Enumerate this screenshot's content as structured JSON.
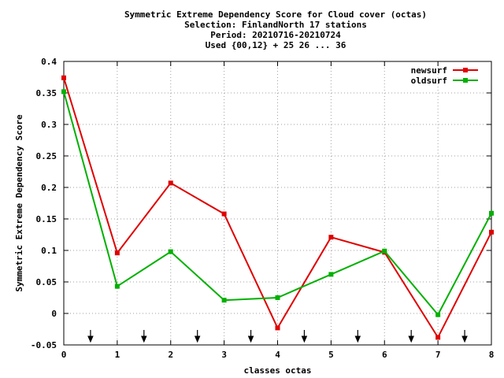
{
  "chart_data": {
    "type": "line",
    "title_lines": [
      "Symmetric Extreme Dependency Score  for Cloud cover (octas)",
      "Selection: FinlandNorth     17 stations",
      "Period: 20210716-20210724",
      "Used {00,12} + 25 26 ... 36"
    ],
    "xlabel": "classes octas",
    "ylabel": "Symmetric Extreme Dependency Score",
    "xlim": [
      0,
      8
    ],
    "ylim": [
      -0.05,
      0.4
    ],
    "x_ticks": [
      0,
      1,
      2,
      3,
      4,
      5,
      6,
      7,
      8
    ],
    "x_tick_labels": [
      "0",
      "1",
      "2",
      "3",
      "4",
      "5",
      "6",
      "7",
      "8"
    ],
    "y_ticks": [
      -0.05,
      0,
      0.05,
      0.1,
      0.15,
      0.2,
      0.25,
      0.3,
      0.35,
      0.4
    ],
    "y_tick_labels": [
      "-0.05",
      "0",
      "0.05",
      "0.1",
      "0.15",
      "0.2",
      "0.25",
      "0.3",
      "0.35",
      "0.4"
    ],
    "grid": true,
    "legend_position": "top-right",
    "arrows_x": [
      0.5,
      1.5,
      2.5,
      3.5,
      4.5,
      5.5,
      6.5,
      7.5
    ],
    "x": [
      0,
      1,
      2,
      3,
      4,
      5,
      6,
      7,
      8
    ],
    "series": [
      {
        "name": "newsurf",
        "color": "#e00000",
        "values": [
          0.374,
          0.096,
          0.207,
          0.158,
          -0.023,
          0.121,
          0.097,
          -0.038,
          0.129
        ]
      },
      {
        "name": "oldsurf",
        "color": "#00b000",
        "values": [
          0.352,
          0.043,
          0.098,
          0.021,
          0.025,
          0.062,
          0.099,
          -0.002,
          0.159
        ]
      }
    ]
  }
}
